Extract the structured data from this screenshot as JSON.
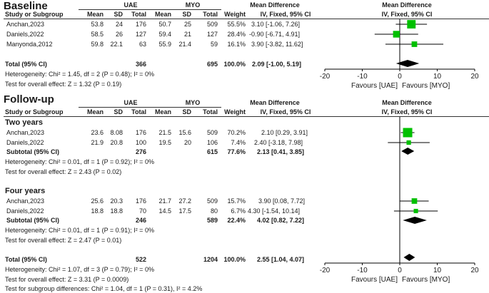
{
  "colors": {
    "square": "#00c000",
    "diamond": "#000000",
    "line": "#000000",
    "text": "#1a1a1a"
  },
  "headers": {
    "study": "Study or Subgroup",
    "uae": "UAE",
    "myo": "MYO",
    "mean": "Mean",
    "sd": "SD",
    "total": "Total",
    "weight": "Weight",
    "md_title": "Mean Difference",
    "md_sub": "IV, Fixed, 95% CI"
  },
  "baseline": {
    "title": "Baseline",
    "studies": [
      {
        "study": "Anchan,2023",
        "uae_mean": "53.8",
        "uae_sd": "24",
        "uae_total": "176",
        "myo_mean": "50.7",
        "myo_sd": "25",
        "myo_total": "509",
        "weight": "55.5%",
        "ci": "3.10 [-1.06, 7.26]"
      },
      {
        "study": "Daniels,2022",
        "uae_mean": "58.5",
        "uae_sd": "26",
        "uae_total": "127",
        "myo_mean": "59.4",
        "myo_sd": "21",
        "myo_total": "127",
        "weight": "28.4%",
        "ci": "-0.90 [-6.71, 4.91]"
      },
      {
        "study": "Manyonda,2012",
        "uae_mean": "59.8",
        "uae_sd": "22.1",
        "uae_total": "63",
        "myo_mean": "55.9",
        "myo_sd": "21.4",
        "myo_total": "59",
        "weight": "16.1%",
        "ci": "3.90 [-3.82, 11.62]"
      }
    ],
    "total": {
      "label": "Total (95% CI)",
      "uae_total": "366",
      "myo_total": "695",
      "weight": "100.0%",
      "ci": "2.09 [-1.00, 5.19]"
    },
    "heterogeneity": "Heterogeneity: Chi² = 1.45, df = 2 (P = 0.48); I² = 0%",
    "overall": "Test for overall effect: Z = 1.32 (P = 0.19)"
  },
  "followup": {
    "title": "Follow-up",
    "two_years": {
      "title": "Two years",
      "studies": [
        {
          "study": "Anchan,2023",
          "uae_mean": "23.6",
          "uae_sd": "8.08",
          "uae_total": "176",
          "myo_mean": "21.5",
          "myo_sd": "15.6",
          "myo_total": "509",
          "weight": "70.2%",
          "ci": "2.10 [0.29, 3.91]"
        },
        {
          "study": "Daniels,2022",
          "uae_mean": "21.9",
          "uae_sd": "20.8",
          "uae_total": "100",
          "myo_mean": "19.5",
          "myo_sd": "20",
          "myo_total": "106",
          "weight": "7.4%",
          "ci": "2.40 [-3.18, 7.98]"
        }
      ],
      "subtotal": {
        "label": "Subtotal (95% CI)",
        "uae_total": "276",
        "myo_total": "615",
        "weight": "77.6%",
        "ci": "2.13 [0.41, 3.85]"
      },
      "heterogeneity": "Heterogeneity: Chi² = 0.01, df = 1 (P = 0.92); I² = 0%",
      "overall": "Test for overall effect: Z = 2.43 (P = 0.02)"
    },
    "four_years": {
      "title": "Four years",
      "studies": [
        {
          "study": "Anchan,2023",
          "uae_mean": "25.6",
          "uae_sd": "20.3",
          "uae_total": "176",
          "myo_mean": "21.7",
          "myo_sd": "27.2",
          "myo_total": "509",
          "weight": "15.7%",
          "ci": "3.90 [0.08, 7.72]"
        },
        {
          "study": "Daniels,2022",
          "uae_mean": "18.8",
          "uae_sd": "18.8",
          "uae_total": "70",
          "myo_mean": "14.5",
          "myo_sd": "17.5",
          "myo_total": "80",
          "weight": "6.7%",
          "ci": "4.30 [-1.54, 10.14]"
        }
      ],
      "subtotal": {
        "label": "Subtotal (95% CI)",
        "uae_total": "246",
        "myo_total": "589",
        "weight": "22.4%",
        "ci": "4.02 [0.82, 7.22]"
      },
      "heterogeneity": "Heterogeneity: Chi² = 0.01, df = 1 (P = 0.91); I² = 0%",
      "overall": "Test for overall effect: Z = 2.47 (P = 0.01)"
    },
    "total": {
      "label": "Total (95% CI)",
      "uae_total": "522",
      "myo_total": "1204",
      "weight": "100.0%",
      "ci": "2.55 [1.04, 4.07]"
    },
    "heterogeneity": "Heterogeneity: Chi² = 1.07, df = 3 (P = 0.79); I² = 0%",
    "overall": "Test for overall effect: Z = 3.31 (P = 0.0009)",
    "subgroup": "Test for subgroup differences: Chi² = 1.04, df = 1 (P = 0.31), I² = 4.2%"
  },
  "chart_data": [
    {
      "type": "forest",
      "title": "Baseline",
      "xlim": [
        -20,
        20
      ],
      "ticks": [
        "-20",
        "-10",
        "0",
        "10",
        "20"
      ],
      "favours_left": "Favours [UAE]",
      "favours_right": "Favours [MYO]",
      "studies": [
        {
          "name": "Anchan,2023",
          "md": 3.1,
          "lo": -1.06,
          "hi": 7.26,
          "weight": 55.5
        },
        {
          "name": "Daniels,2022",
          "md": -0.9,
          "lo": -6.71,
          "hi": 4.91,
          "weight": 28.4
        },
        {
          "name": "Manyonda,2012",
          "md": 3.9,
          "lo": -3.82,
          "hi": 11.62,
          "weight": 16.1
        }
      ],
      "pooled": [
        {
          "name": "Total (95% CI)",
          "md": 2.09,
          "lo": -1.0,
          "hi": 5.19
        }
      ]
    },
    {
      "type": "forest",
      "title": "Follow-up",
      "xlim": [
        -20,
        20
      ],
      "ticks": [
        "-20",
        "-10",
        "0",
        "10",
        "20"
      ],
      "favours_left": "Favours [UAE]",
      "favours_right": "Favours [MYO]",
      "studies": [
        {
          "name": "Anchan,2023 (Two years)",
          "md": 2.1,
          "lo": 0.29,
          "hi": 3.91,
          "weight": 70.2
        },
        {
          "name": "Daniels,2022 (Two years)",
          "md": 2.4,
          "lo": -3.18,
          "hi": 7.98,
          "weight": 7.4
        },
        {
          "name": "Anchan,2023 (Four years)",
          "md": 3.9,
          "lo": 0.08,
          "hi": 7.72,
          "weight": 15.7
        },
        {
          "name": "Daniels,2022 (Four years)",
          "md": 4.3,
          "lo": -1.54,
          "hi": 10.14,
          "weight": 6.7
        }
      ],
      "pooled": [
        {
          "name": "Subtotal Two years",
          "md": 2.13,
          "lo": 0.41,
          "hi": 3.85
        },
        {
          "name": "Subtotal Four years",
          "md": 4.02,
          "lo": 0.82,
          "hi": 7.22
        },
        {
          "name": "Total (95% CI)",
          "md": 2.55,
          "lo": 1.04,
          "hi": 4.07
        }
      ]
    }
  ]
}
